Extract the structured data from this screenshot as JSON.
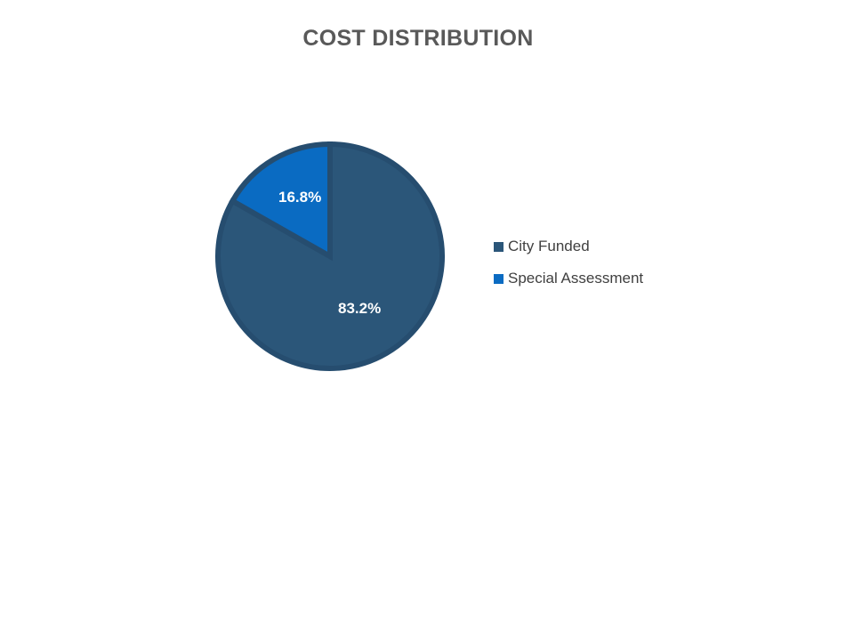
{
  "chart_data": {
    "type": "pie",
    "title": "COST DISTRIBUTION",
    "categories": [
      "City Funded",
      "Special Assessment"
    ],
    "values": [
      83.2,
      16.8
    ],
    "labels": [
      "83.2%",
      "16.8%"
    ],
    "colors": [
      "#2b5679",
      "#0a6bc2"
    ],
    "border_color": "#264d6f",
    "legend_position": "right",
    "start_angle": "12 o'clock, clockwise"
  }
}
